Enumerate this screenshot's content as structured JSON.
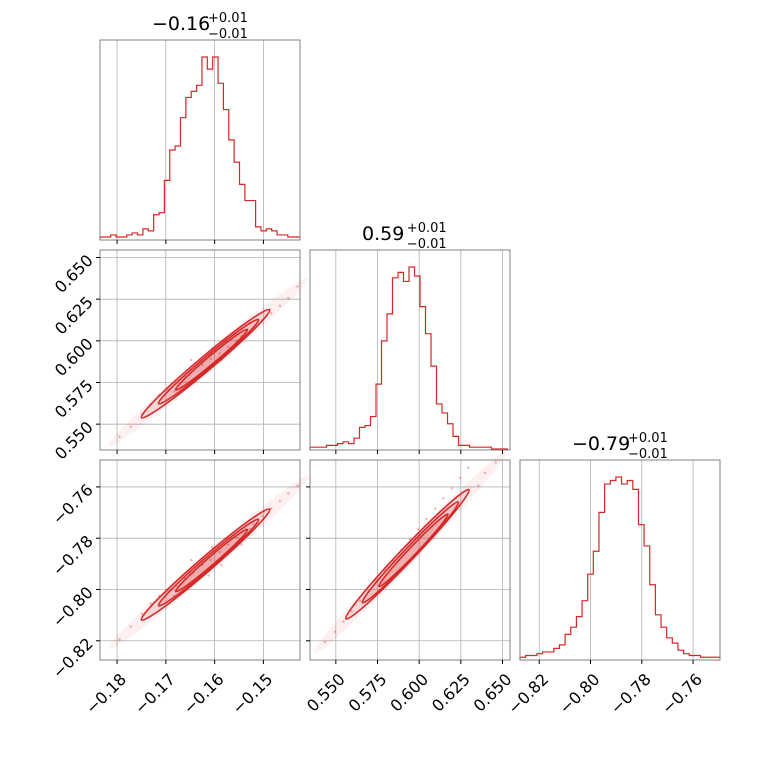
{
  "colors": {
    "accent": "#d62728",
    "grid": "#b0b0b0",
    "frame": "#808080"
  },
  "chart_data": [
    {
      "type": "histogram",
      "panel": "diag-0",
      "title": "−0.16",
      "title_sup": "+0.01",
      "title_sub": "−0.01",
      "xlim": [
        -0.1835,
        -0.1425
      ],
      "xticks": [
        -0.18,
        -0.17,
        -0.16,
        -0.15
      ],
      "xtick_labels": [
        "−0.18",
        "−0.17",
        "−0.16",
        "−0.15"
      ],
      "grid": true,
      "x": [
        -0.1835,
        -0.1824,
        -0.1813,
        -0.1802,
        -0.1791,
        -0.178,
        -0.1769,
        -0.1758,
        -0.1747,
        -0.1736,
        -0.1725,
        -0.1714,
        -0.1703,
        -0.1692,
        -0.1681,
        -0.167,
        -0.1659,
        -0.1648,
        -0.1637,
        -0.1626,
        -0.1615,
        -0.1604,
        -0.1593,
        -0.1582,
        -0.1571,
        -0.156,
        -0.1549,
        -0.1538,
        -0.1527,
        -0.1516,
        -0.1505,
        -0.1494,
        -0.1483,
        -0.1472,
        -0.1461,
        -0.145,
        -0.1439,
        -0.1428
      ],
      "counts": [
        1,
        1,
        2,
        1,
        1,
        2,
        3,
        2,
        5,
        4,
        12,
        13,
        29,
        44,
        46,
        60,
        70,
        73,
        76,
        90,
        84,
        90,
        77,
        64,
        49,
        38,
        27,
        19,
        19,
        6,
        4,
        5,
        4,
        2,
        2,
        1,
        1,
        1
      ]
    },
    {
      "type": "histogram",
      "panel": "diag-1",
      "title": "0.59",
      "title_sup": "+0.01",
      "title_sub": "−0.01",
      "xlim": [
        0.5345,
        0.6545
      ],
      "xticks": [
        0.55,
        0.575,
        0.6,
        0.625,
        0.65
      ],
      "xtick_labels": [
        "0.550",
        "0.575",
        "0.600",
        "0.625",
        "0.650"
      ],
      "grid": true,
      "x": [
        0.5345,
        0.5378,
        0.5411,
        0.5444,
        0.5477,
        0.551,
        0.5543,
        0.5576,
        0.5609,
        0.5642,
        0.5675,
        0.5708,
        0.5741,
        0.5774,
        0.5807,
        0.584,
        0.5873,
        0.5906,
        0.5939,
        0.5972,
        0.6005,
        0.6038,
        0.6071,
        0.6104,
        0.6137,
        0.617,
        0.6203,
        0.6236,
        0.6269,
        0.6302,
        0.6335,
        0.6368,
        0.6401,
        0.6434,
        0.6467,
        0.65
      ],
      "counts": [
        1,
        1,
        1,
        2,
        2,
        3,
        4,
        3,
        6,
        12,
        13,
        18,
        36,
        60,
        75,
        95,
        98,
        93,
        101,
        96,
        79,
        64,
        46,
        25,
        20,
        14,
        7,
        2,
        2,
        1,
        1,
        1,
        1,
        0,
        0,
        0
      ]
    },
    {
      "type": "histogram",
      "panel": "diag-2",
      "title": "−0.79",
      "title_sup": "+0.01",
      "title_sub": "−0.01",
      "xlim": [
        -0.8275,
        -0.7495
      ],
      "xticks": [
        -0.82,
        -0.8,
        -0.78,
        -0.76
      ],
      "xtick_labels": [
        "−0.82",
        "−0.80",
        "−0.78",
        "−0.76"
      ],
      "grid": true,
      "x": [
        -0.8275,
        -0.8253,
        -0.8231,
        -0.8209,
        -0.8187,
        -0.8165,
        -0.8143,
        -0.8121,
        -0.8099,
        -0.8077,
        -0.8055,
        -0.8033,
        -0.8011,
        -0.7989,
        -0.7967,
        -0.7945,
        -0.7923,
        -0.7901,
        -0.7879,
        -0.7857,
        -0.7835,
        -0.7813,
        -0.7791,
        -0.7769,
        -0.7747,
        -0.7725,
        -0.7703,
        -0.7681,
        -0.7659,
        -0.7637,
        -0.7615,
        -0.7593,
        -0.7571,
        -0.7549,
        -0.7527,
        -0.7505
      ],
      "counts": [
        1,
        2,
        2,
        3,
        4,
        4,
        6,
        8,
        14,
        18,
        24,
        33,
        48,
        61,
        83,
        99,
        101,
        103,
        99,
        101,
        96,
        76,
        64,
        42,
        25,
        18,
        12,
        9,
        5,
        3,
        2,
        2,
        1,
        1,
        1,
        1
      ]
    },
    {
      "type": "scatter",
      "panel": "lower-1-0",
      "xlim": [
        -0.1835,
        -0.1425
      ],
      "ylim": [
        0.5345,
        0.6545
      ],
      "yticks": [
        0.55,
        0.575,
        0.6,
        0.625,
        0.65
      ],
      "ytick_labels": [
        "0.550",
        "0.575",
        "0.600",
        "0.625",
        "0.650"
      ],
      "grid": true,
      "points": [
        [
          -0.1795,
          0.5425
        ],
        [
          -0.1772,
          0.5485
        ],
        [
          -0.1749,
          0.556
        ],
        [
          -0.1731,
          0.562
        ],
        [
          -0.1714,
          0.5675
        ],
        [
          -0.1696,
          0.5705
        ],
        [
          -0.1678,
          0.5745
        ],
        [
          -0.1661,
          0.5785
        ],
        [
          -0.1643,
          0.5822
        ],
        [
          -0.1625,
          0.5855
        ],
        [
          -0.1608,
          0.5892
        ],
        [
          -0.159,
          0.5925
        ],
        [
          -0.1572,
          0.5965
        ],
        [
          -0.1555,
          0.6002
        ],
        [
          -0.1537,
          0.6045
        ],
        [
          -0.152,
          0.6085
        ],
        [
          -0.1502,
          0.6123
        ],
        [
          -0.1484,
          0.6165
        ],
        [
          -0.1466,
          0.621
        ],
        [
          -0.1449,
          0.6255
        ],
        [
          -0.143,
          0.6325
        ],
        [
          -0.1648,
          0.5885
        ],
        [
          -0.1605,
          0.5955
        ],
        [
          -0.1575,
          0.5995
        ],
        [
          -0.1652,
          0.5795
        ],
        [
          -0.1612,
          0.5845
        ],
        [
          -0.1586,
          0.5885
        ],
        [
          -0.1528,
          0.6105
        ],
        [
          -0.1545,
          0.6025
        ],
        [
          -0.1683,
          0.5695
        ]
      ],
      "contour_levels": 3
    },
    {
      "type": "scatter",
      "panel": "lower-2-0",
      "xlim": [
        -0.1835,
        -0.1425
      ],
      "ylim": [
        -0.8275,
        -0.7495
      ],
      "yticks": [
        -0.82,
        -0.8,
        -0.78,
        -0.76
      ],
      "ytick_labels": [
        "−0.82",
        "−0.80",
        "−0.78",
        "−0.76"
      ],
      "grid": true,
      "points": [
        [
          -0.1795,
          -0.8195
        ],
        [
          -0.1772,
          -0.8145
        ],
        [
          -0.1749,
          -0.8095
        ],
        [
          -0.1731,
          -0.8055
        ],
        [
          -0.1714,
          -0.8025
        ],
        [
          -0.1696,
          -0.8005
        ],
        [
          -0.1678,
          -0.7985
        ],
        [
          -0.1661,
          -0.7955
        ],
        [
          -0.1643,
          -0.7935
        ],
        [
          -0.1625,
          -0.7905
        ],
        [
          -0.1608,
          -0.7885
        ],
        [
          -0.159,
          -0.7855
        ],
        [
          -0.1572,
          -0.7825
        ],
        [
          -0.1555,
          -0.7795
        ],
        [
          -0.1537,
          -0.7765
        ],
        [
          -0.152,
          -0.7745
        ],
        [
          -0.1502,
          -0.7715
        ],
        [
          -0.1484,
          -0.7685
        ],
        [
          -0.1466,
          -0.7655
        ],
        [
          -0.1449,
          -0.7625
        ],
        [
          -0.143,
          -0.7595
        ],
        [
          -0.1648,
          -0.7885
        ],
        [
          -0.1605,
          -0.7835
        ],
        [
          -0.1575,
          -0.7805
        ],
        [
          -0.1652,
          -0.7985
        ],
        [
          -0.1612,
          -0.7945
        ],
        [
          -0.1586,
          -0.7905
        ],
        [
          -0.1528,
          -0.7765
        ],
        [
          -0.1545,
          -0.7825
        ],
        [
          -0.1683,
          -0.8025
        ]
      ],
      "contour_levels": 3
    },
    {
      "type": "scatter",
      "panel": "lower-2-1",
      "xlim": [
        0.5345,
        0.6545
      ],
      "ylim": [
        -0.8275,
        -0.7495
      ],
      "xticks": [
        0.55,
        0.575,
        0.6,
        0.625,
        0.65
      ],
      "xtick_labels": [
        "0.550",
        "0.575",
        "0.600",
        "0.625",
        "0.650"
      ],
      "grid": true,
      "points": [
        [
          0.5435,
          -0.8205
        ],
        [
          0.5495,
          -0.8165
        ],
        [
          0.5545,
          -0.8125
        ],
        [
          0.5595,
          -0.8085
        ],
        [
          0.5645,
          -0.8045
        ],
        [
          0.5695,
          -0.8005
        ],
        [
          0.5745,
          -0.7965
        ],
        [
          0.5795,
          -0.7925
        ],
        [
          0.5845,
          -0.7885
        ],
        [
          0.5895,
          -0.7845
        ],
        [
          0.5945,
          -0.7805
        ],
        [
          0.5995,
          -0.7765
        ],
        [
          0.6045,
          -0.7725
        ],
        [
          0.6095,
          -0.7685
        ],
        [
          0.6145,
          -0.7645
        ],
        [
          0.6195,
          -0.7605
        ],
        [
          0.6245,
          -0.7565
        ],
        [
          0.6295,
          -0.7525
        ],
        [
          0.6355,
          -0.7595
        ],
        [
          0.6395,
          -0.7545
        ],
        [
          0.646,
          -0.7505
        ]
      ],
      "contour_levels": 3
    }
  ]
}
